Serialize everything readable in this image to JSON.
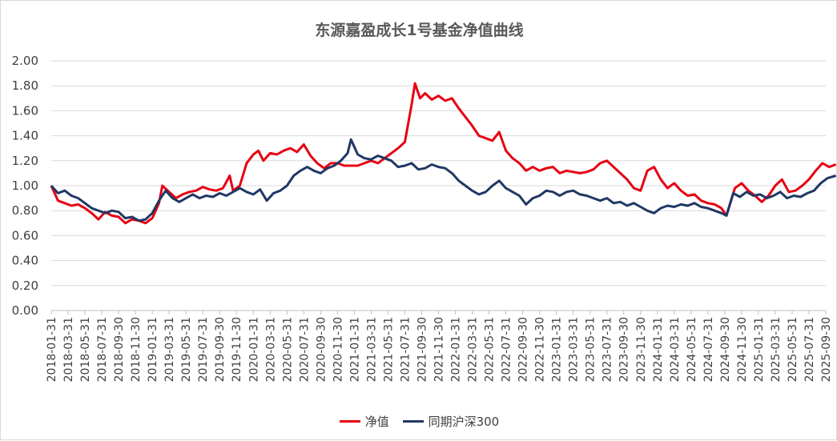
{
  "chart_data": {
    "type": "line",
    "title": "东源嘉盈成长1号基金净值曲线",
    "ylim": [
      0,
      2
    ],
    "yticks": [
      "0.00",
      "0.20",
      "0.40",
      "0.60",
      "0.80",
      "1.00",
      "1.20",
      "1.40",
      "1.60",
      "1.80",
      "2.00"
    ],
    "xticks": [
      "2018-01-31",
      "2018-03-31",
      "2018-05-31",
      "2018-07-31",
      "2018-09-30",
      "2018-11-30",
      "2019-01-31",
      "2019-03-31",
      "2019-05-31",
      "2019-07-31",
      "2019-09-30",
      "2019-11-30",
      "2020-01-31",
      "2020-03-31",
      "2020-05-31",
      "2020-07-31",
      "2020-09-30",
      "2020-11-30",
      "2021-01-31",
      "2021-03-31",
      "2021-05-31",
      "2021-07-31",
      "2021-09-30",
      "2021-11-30",
      "2022-01-31",
      "2022-03-31",
      "2022-05-31",
      "2022-07-31",
      "2022-09-30",
      "2022-11-30",
      "2023-01-31",
      "2023-03-31",
      "2023-05-31",
      "2023-07-31",
      "2023-09-30",
      "2023-11-30",
      "2024-01-31",
      "2024-03-31",
      "2024-05-31",
      "2024-07-31",
      "2024-09-30",
      "2024-11-30",
      "2025-01-31",
      "2025-03-31",
      "2025-05-31",
      "2025-07-31",
      "2025-09-30"
    ],
    "grid": true,
    "legend_position": "bottom",
    "series": [
      {
        "name": "净值",
        "color": "#e60012",
        "values": [
          [
            0,
            1.0
          ],
          [
            0.4,
            0.88
          ],
          [
            0.8,
            0.86
          ],
          [
            1.2,
            0.84
          ],
          [
            1.6,
            0.85
          ],
          [
            2.0,
            0.82
          ],
          [
            2.4,
            0.78
          ],
          [
            2.8,
            0.73
          ],
          [
            3.2,
            0.79
          ],
          [
            3.6,
            0.76
          ],
          [
            4.0,
            0.75
          ],
          [
            4.4,
            0.7
          ],
          [
            4.8,
            0.73
          ],
          [
            5.2,
            0.72
          ],
          [
            5.6,
            0.7
          ],
          [
            6.0,
            0.74
          ],
          [
            6.4,
            0.86
          ],
          [
            6.6,
            1.0
          ],
          [
            7.0,
            0.95
          ],
          [
            7.4,
            0.9
          ],
          [
            7.8,
            0.93
          ],
          [
            8.2,
            0.95
          ],
          [
            8.6,
            0.96
          ],
          [
            9.0,
            0.99
          ],
          [
            9.4,
            0.97
          ],
          [
            9.8,
            0.96
          ],
          [
            10.2,
            0.98
          ],
          [
            10.6,
            1.08
          ],
          [
            10.8,
            0.96
          ],
          [
            11.2,
            1.0
          ],
          [
            11.6,
            1.18
          ],
          [
            12.0,
            1.25
          ],
          [
            12.3,
            1.28
          ],
          [
            12.6,
            1.2
          ],
          [
            13.0,
            1.26
          ],
          [
            13.4,
            1.25
          ],
          [
            13.8,
            1.28
          ],
          [
            14.2,
            1.3
          ],
          [
            14.6,
            1.27
          ],
          [
            15.0,
            1.33
          ],
          [
            15.4,
            1.24
          ],
          [
            15.8,
            1.18
          ],
          [
            16.2,
            1.14
          ],
          [
            16.6,
            1.18
          ],
          [
            17.0,
            1.18
          ],
          [
            17.4,
            1.16
          ],
          [
            17.8,
            1.16
          ],
          [
            18.2,
            1.16
          ],
          [
            18.6,
            1.18
          ],
          [
            19.0,
            1.2
          ],
          [
            19.4,
            1.18
          ],
          [
            19.8,
            1.22
          ],
          [
            20.2,
            1.26
          ],
          [
            20.6,
            1.3
          ],
          [
            21.0,
            1.35
          ],
          [
            21.4,
            1.65
          ],
          [
            21.6,
            1.82
          ],
          [
            21.9,
            1.7
          ],
          [
            22.2,
            1.74
          ],
          [
            22.6,
            1.69
          ],
          [
            23.0,
            1.72
          ],
          [
            23.4,
            1.68
          ],
          [
            23.8,
            1.7
          ],
          [
            24.2,
            1.62
          ],
          [
            24.6,
            1.55
          ],
          [
            25.0,
            1.48
          ],
          [
            25.4,
            1.4
          ],
          [
            25.8,
            1.38
          ],
          [
            26.2,
            1.36
          ],
          [
            26.6,
            1.43
          ],
          [
            27.0,
            1.28
          ],
          [
            27.4,
            1.22
          ],
          [
            27.8,
            1.18
          ],
          [
            28.2,
            1.12
          ],
          [
            28.6,
            1.15
          ],
          [
            29.0,
            1.12
          ],
          [
            29.4,
            1.14
          ],
          [
            29.8,
            1.15
          ],
          [
            30.2,
            1.1
          ],
          [
            30.6,
            1.12
          ],
          [
            31.0,
            1.11
          ],
          [
            31.4,
            1.1
          ],
          [
            31.8,
            1.11
          ],
          [
            32.2,
            1.13
          ],
          [
            32.6,
            1.18
          ],
          [
            33.0,
            1.2
          ],
          [
            33.4,
            1.15
          ],
          [
            33.8,
            1.1
          ],
          [
            34.2,
            1.05
          ],
          [
            34.6,
            0.98
          ],
          [
            35.0,
            0.96
          ],
          [
            35.4,
            1.12
          ],
          [
            35.8,
            1.15
          ],
          [
            36.2,
            1.05
          ],
          [
            36.6,
            0.98
          ],
          [
            37.0,
            1.02
          ],
          [
            37.4,
            0.96
          ],
          [
            37.8,
            0.92
          ],
          [
            38.2,
            0.93
          ],
          [
            38.6,
            0.88
          ],
          [
            39.0,
            0.86
          ],
          [
            39.4,
            0.85
          ],
          [
            39.8,
            0.82
          ],
          [
            40.1,
            0.76
          ],
          [
            40.6,
            0.98
          ],
          [
            41.0,
            1.02
          ],
          [
            41.4,
            0.96
          ],
          [
            41.8,
            0.92
          ],
          [
            42.2,
            0.87
          ],
          [
            42.6,
            0.92
          ],
          [
            43.0,
            1.0
          ],
          [
            43.4,
            1.05
          ],
          [
            43.8,
            0.95
          ],
          [
            44.2,
            0.96
          ],
          [
            44.6,
            1.0
          ],
          [
            45.0,
            1.05
          ],
          [
            45.4,
            1.12
          ],
          [
            45.8,
            1.18
          ],
          [
            46.2,
            1.15
          ],
          [
            46.6,
            1.17
          ]
        ]
      },
      {
        "name": "同期沪深300",
        "color": "#203864",
        "values": [
          [
            0,
            1.0
          ],
          [
            0.4,
            0.94
          ],
          [
            0.8,
            0.96
          ],
          [
            1.2,
            0.92
          ],
          [
            1.6,
            0.9
          ],
          [
            2.0,
            0.86
          ],
          [
            2.4,
            0.82
          ],
          [
            2.8,
            0.8
          ],
          [
            3.2,
            0.78
          ],
          [
            3.6,
            0.8
          ],
          [
            4.0,
            0.79
          ],
          [
            4.4,
            0.74
          ],
          [
            4.8,
            0.75
          ],
          [
            5.2,
            0.72
          ],
          [
            5.6,
            0.73
          ],
          [
            6.0,
            0.78
          ],
          [
            6.4,
            0.88
          ],
          [
            6.8,
            0.96
          ],
          [
            7.2,
            0.9
          ],
          [
            7.6,
            0.87
          ],
          [
            8.0,
            0.9
          ],
          [
            8.4,
            0.93
          ],
          [
            8.8,
            0.9
          ],
          [
            9.2,
            0.92
          ],
          [
            9.6,
            0.91
          ],
          [
            10.0,
            0.94
          ],
          [
            10.4,
            0.92
          ],
          [
            10.8,
            0.95
          ],
          [
            11.2,
            0.98
          ],
          [
            11.6,
            0.95
          ],
          [
            12.0,
            0.93
          ],
          [
            12.4,
            0.97
          ],
          [
            12.8,
            0.88
          ],
          [
            13.2,
            0.94
          ],
          [
            13.6,
            0.96
          ],
          [
            14.0,
            1.0
          ],
          [
            14.4,
            1.08
          ],
          [
            14.8,
            1.12
          ],
          [
            15.2,
            1.15
          ],
          [
            15.6,
            1.12
          ],
          [
            16.0,
            1.1
          ],
          [
            16.4,
            1.14
          ],
          [
            16.8,
            1.16
          ],
          [
            17.2,
            1.2
          ],
          [
            17.6,
            1.26
          ],
          [
            17.8,
            1.37
          ],
          [
            18.2,
            1.25
          ],
          [
            18.6,
            1.22
          ],
          [
            19.0,
            1.21
          ],
          [
            19.4,
            1.24
          ],
          [
            19.8,
            1.22
          ],
          [
            20.2,
            1.2
          ],
          [
            20.6,
            1.15
          ],
          [
            21.0,
            1.16
          ],
          [
            21.4,
            1.18
          ],
          [
            21.8,
            1.13
          ],
          [
            22.2,
            1.14
          ],
          [
            22.6,
            1.17
          ],
          [
            23.0,
            1.15
          ],
          [
            23.4,
            1.14
          ],
          [
            23.8,
            1.1
          ],
          [
            24.2,
            1.04
          ],
          [
            24.6,
            1.0
          ],
          [
            25.0,
            0.96
          ],
          [
            25.4,
            0.93
          ],
          [
            25.8,
            0.95
          ],
          [
            26.2,
            1.0
          ],
          [
            26.6,
            1.04
          ],
          [
            27.0,
            0.98
          ],
          [
            27.4,
            0.95
          ],
          [
            27.8,
            0.92
          ],
          [
            28.2,
            0.85
          ],
          [
            28.6,
            0.9
          ],
          [
            29.0,
            0.92
          ],
          [
            29.4,
            0.96
          ],
          [
            29.8,
            0.95
          ],
          [
            30.2,
            0.92
          ],
          [
            30.6,
            0.95
          ],
          [
            31.0,
            0.96
          ],
          [
            31.4,
            0.93
          ],
          [
            31.8,
            0.92
          ],
          [
            32.2,
            0.9
          ],
          [
            32.6,
            0.88
          ],
          [
            33.0,
            0.9
          ],
          [
            33.4,
            0.86
          ],
          [
            33.8,
            0.87
          ],
          [
            34.2,
            0.84
          ],
          [
            34.6,
            0.86
          ],
          [
            35.0,
            0.83
          ],
          [
            35.4,
            0.8
          ],
          [
            35.8,
            0.78
          ],
          [
            36.2,
            0.82
          ],
          [
            36.6,
            0.84
          ],
          [
            37.0,
            0.83
          ],
          [
            37.4,
            0.85
          ],
          [
            37.8,
            0.84
          ],
          [
            38.2,
            0.86
          ],
          [
            38.6,
            0.83
          ],
          [
            39.0,
            0.82
          ],
          [
            39.4,
            0.8
          ],
          [
            39.8,
            0.78
          ],
          [
            40.1,
            0.76
          ],
          [
            40.5,
            0.94
          ],
          [
            40.9,
            0.91
          ],
          [
            41.3,
            0.95
          ],
          [
            41.7,
            0.92
          ],
          [
            42.1,
            0.93
          ],
          [
            42.5,
            0.9
          ],
          [
            42.9,
            0.92
          ],
          [
            43.3,
            0.95
          ],
          [
            43.7,
            0.9
          ],
          [
            44.1,
            0.92
          ],
          [
            44.5,
            0.91
          ],
          [
            44.9,
            0.94
          ],
          [
            45.3,
            0.96
          ],
          [
            45.7,
            1.02
          ],
          [
            46.1,
            1.06
          ],
          [
            46.6,
            1.08
          ]
        ]
      }
    ]
  }
}
